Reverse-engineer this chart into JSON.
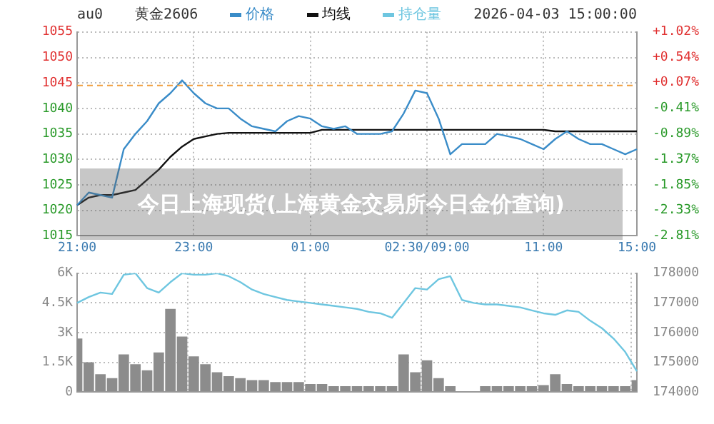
{
  "chart_data": [
    {
      "type": "line",
      "title": "黄金2606",
      "subtitle": "2026-04-03 15:00:00",
      "annotations": [
        "au0",
        "今日上海现货(上海黄金交易所今日金价查询)"
      ],
      "categories": [
        "21:00",
        null,
        null,
        null,
        null,
        null,
        null,
        null,
        null,
        null,
        "23:00",
        null,
        null,
        null,
        null,
        null,
        null,
        null,
        null,
        null,
        "01:00",
        null,
        null,
        null,
        null,
        null,
        null,
        null,
        null,
        null,
        "02:30/09:00",
        null,
        null,
        null,
        null,
        null,
        null,
        null,
        null,
        null,
        "11:00",
        null,
        null,
        null,
        null,
        null,
        null,
        null,
        "15:00"
      ],
      "series": [
        {
          "name": "价格",
          "color": "#3a8cc8",
          "values": [
            1021,
            1023.5,
            1023,
            1022.5,
            1032,
            1035,
            1037.5,
            1041,
            1043,
            1045.5,
            1043,
            1041,
            1040,
            1040,
            1038,
            1036.5,
            1036,
            1035.5,
            1037.5,
            1038.5,
            1038,
            1036.5,
            1036,
            1036.5,
            1035,
            1035,
            1035,
            1035.5,
            1039,
            1043.5,
            1043,
            1038,
            1031,
            1033,
            1033,
            1033,
            1035,
            1034.5,
            1034,
            1033,
            1032,
            1034,
            1035.5,
            1034,
            1033,
            1033,
            1032,
            1031,
            1032
          ]
        },
        {
          "name": "均线",
          "color": "#111111",
          "values": [
            1021,
            1022.5,
            1023,
            1023,
            1023.5,
            1024,
            1026,
            1028,
            1030.5,
            1032.5,
            1034,
            1034.5,
            1035,
            1035.2,
            1035.2,
            1035.2,
            1035.2,
            1035.2,
            1035.2,
            1035.2,
            1035.2,
            1035.8,
            1035.8,
            1035.8,
            1035.8,
            1035.8,
            1035.8,
            1035.8,
            1035.8,
            1035.8,
            1035.8,
            1035.8,
            1035.8,
            1035.8,
            1035.8,
            1035.8,
            1035.8,
            1035.8,
            1035.8,
            1035.8,
            1035.8,
            1035.5,
            1035.5,
            1035.5,
            1035.5,
            1035.5,
            1035.5,
            1035.5,
            1035.5
          ]
        }
      ],
      "ylim": [
        1015,
        1055
      ],
      "yticks": [
        1015,
        1020,
        1025,
        1030,
        1035,
        1040,
        1045,
        1050,
        1055
      ],
      "y2lim": [
        -2.81,
        1.02
      ],
      "y2ticks": [
        {
          "value": -2.81,
          "label": "-2.81%"
        },
        {
          "value": -2.33,
          "label": "-2.33%"
        },
        {
          "value": -1.85,
          "label": "-1.85%"
        },
        {
          "value": -1.37,
          "label": "-1.37%"
        },
        {
          "value": -0.89,
          "label": "-0.89%"
        },
        {
          "value": -0.41,
          "label": "-0.41%"
        },
        {
          "value": 0.07,
          "label": "+0.07%"
        },
        {
          "value": 0.54,
          "label": "+0.54%"
        },
        {
          "value": 1.02,
          "label": "+1.02%"
        }
      ],
      "ref_lines": [
        {
          "axis": "y",
          "value": 1044.5,
          "color": "#f0a040",
          "line_style": "dashed"
        }
      ],
      "grid": true,
      "legend": "top",
      "marker": "none",
      "line_style": "solid"
    },
    {
      "type": "bar",
      "categories": [
        null,
        null,
        null,
        null,
        null,
        null,
        null,
        null,
        null,
        null,
        null,
        null,
        null,
        null,
        null,
        null,
        null,
        null,
        null,
        null,
        null,
        null,
        null,
        null,
        null,
        null,
        null,
        null,
        null,
        null,
        null,
        null,
        null,
        null,
        null,
        null,
        null,
        null,
        null,
        null,
        null,
        null,
        null,
        null,
        null,
        null,
        null,
        null,
        null
      ],
      "series": [
        {
          "color": "#8c8c8c",
          "values": [
            2700,
            1500,
            900,
            700,
            1900,
            1400,
            1100,
            2000,
            4200,
            2800,
            1800,
            1400,
            1000,
            800,
            700,
            600,
            600,
            500,
            500,
            500,
            400,
            400,
            300,
            300,
            300,
            300,
            300,
            300,
            1900,
            1000,
            1600,
            700,
            300,
            0,
            0,
            300,
            300,
            300,
            300,
            300,
            350,
            900,
            400,
            300,
            300,
            300,
            300,
            300,
            600
          ]
        },
        {
          "name": "持仓量",
          "type": "line",
          "axis": "y2",
          "color": "#6ec6e0",
          "values": [
            177000,
            177200,
            177350,
            177300,
            177950,
            178000,
            177500,
            177350,
            177700,
            178000,
            177950,
            177950,
            178000,
            177900,
            177700,
            177450,
            177300,
            177200,
            177100,
            177050,
            177000,
            176950,
            176900,
            176850,
            176800,
            176700,
            176650,
            176500,
            177000,
            177500,
            177450,
            177800,
            177900,
            177100,
            177000,
            176950,
            176950,
            176900,
            176850,
            176750,
            176650,
            176600,
            176750,
            176700,
            176400,
            176150,
            175800,
            175350,
            174700
          ]
        }
      ],
      "ylim": [
        0,
        6000
      ],
      "yticks": [
        0,
        {
          "value": 1500,
          "label": "1.5K"
        },
        {
          "value": 3000,
          "label": "3K"
        },
        {
          "value": 4500,
          "label": "4.5K"
        },
        {
          "value": 6000,
          "label": "6K"
        }
      ],
      "y2lim": [
        174000,
        178000
      ],
      "y2ticks": [
        174000,
        175000,
        176000,
        177000,
        178000
      ],
      "grid": true,
      "legend": "top",
      "tick_labels": "y",
      "marker": "none"
    }
  ]
}
